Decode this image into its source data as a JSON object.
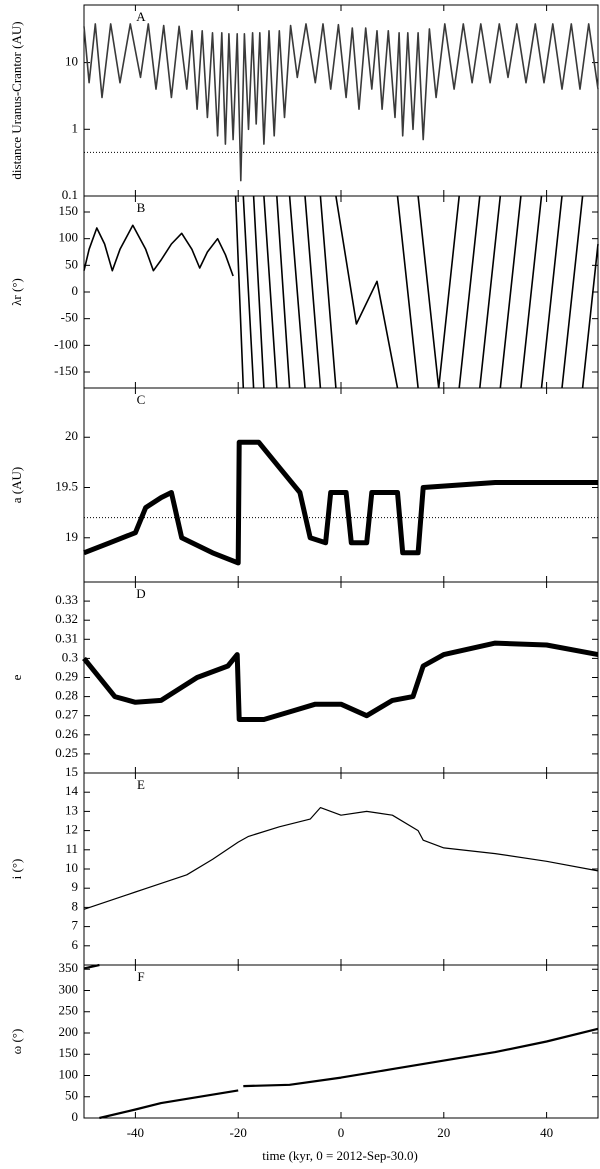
{
  "chart_data": [
    {
      "type": "line",
      "label": "A",
      "ylabel": "distance Uranus-Crantor (AU)",
      "log_y": true,
      "xlim": [
        -50,
        50
      ],
      "ylim": [
        0.1,
        73
      ],
      "yticks": [
        0.1,
        1,
        10
      ],
      "reference_line": 0.45,
      "x": [
        -50,
        -49,
        -47.8,
        -46.5,
        -44.8,
        -43,
        -41,
        -39,
        -37.5,
        -36,
        -34.5,
        -33,
        -31.5,
        -30,
        -29,
        -28,
        -27,
        -26,
        -25,
        -24,
        -23.2,
        -22.5,
        -21.8,
        -21,
        -20.2,
        -19.5,
        -18.8,
        -18,
        -17.2,
        -16.5,
        -15.8,
        -15,
        -14,
        -13,
        -12,
        -11,
        -9.8,
        -8.5,
        -6.8,
        -5,
        -3.5,
        -2,
        -0.5,
        1,
        2.2,
        3.5,
        4.8,
        6,
        7,
        8,
        9.2,
        10.5,
        11.3,
        12,
        13,
        14,
        15,
        16,
        17.2,
        18.5,
        20.2,
        22,
        23.8,
        25.5,
        27.2,
        29,
        30.8,
        32.5,
        34.2,
        36,
        37.8,
        39.5,
        41.2,
        43,
        44.8,
        46.5,
        48.2,
        50
      ],
      "series": [
        {
          "color": "#3a3a3a",
          "values": [
            35,
            5,
            38,
            3,
            38,
            5,
            38,
            6,
            38,
            4,
            36,
            3,
            35,
            4,
            30,
            2,
            30,
            1.5,
            28,
            0.8,
            28,
            0.6,
            27,
            0.7,
            27,
            0.17,
            27,
            1,
            28,
            1.2,
            28,
            0.6,
            30,
            0.8,
            30,
            1.5,
            36,
            6,
            38,
            5,
            38,
            4,
            37,
            3,
            33,
            2,
            33,
            4,
            30,
            2,
            30,
            1.5,
            28,
            0.8,
            28,
            1,
            28,
            0.7,
            32,
            3,
            38,
            4,
            38,
            5,
            38,
            5,
            38,
            6,
            38,
            5,
            38,
            5,
            38,
            4,
            38,
            4,
            38,
            4
          ]
        }
      ]
    },
    {
      "type": "line",
      "label": "B",
      "ylabel": "λr (°)",
      "xlim": [
        -50,
        50
      ],
      "ylim": [
        -180,
        180
      ],
      "yticks": [
        -150,
        -100,
        -50,
        0,
        50,
        100,
        150
      ],
      "x": [
        -50,
        -49,
        -47.5,
        -46,
        -44.5,
        -43,
        -40.5,
        -38,
        -36.5,
        -35,
        -33,
        -31,
        -29,
        -27.5,
        -26,
        -24,
        -22.5,
        -21,
        -20.5,
        -20.5,
        -19,
        -19,
        -19,
        -17,
        -17,
        -17,
        -15,
        -15,
        -15,
        -12.5,
        -12.5,
        -12.5,
        -10,
        -10,
        -10,
        -7,
        -7,
        -7,
        -4,
        -4,
        -4,
        -1,
        -1,
        -1,
        3,
        7,
        11,
        11,
        11,
        15,
        15,
        15,
        19,
        19,
        19,
        23,
        23,
        23,
        27,
        27,
        27,
        31,
        31,
        31,
        35,
        35,
        35,
        39,
        39,
        39,
        43,
        43,
        43,
        47,
        47,
        47,
        50
      ],
      "series": [
        {
          "color": "#000000",
          "values": [
            40,
            80,
            120,
            90,
            40,
            80,
            125,
            80,
            40,
            60,
            90,
            110,
            80,
            45,
            75,
            100,
            70,
            30,
            null,
            180,
            -180,
            null,
            180,
            -180,
            null,
            180,
            -180,
            null,
            180,
            -180,
            null,
            180,
            -180,
            null,
            180,
            -180,
            null,
            180,
            -180,
            null,
            180,
            -180,
            null,
            180,
            -60,
            20,
            -180,
            null,
            180,
            -180,
            null,
            180,
            -180,
            null,
            -180,
            180,
            null,
            -180,
            180,
            null,
            -180,
            180,
            null,
            -180,
            180,
            null,
            -180,
            180,
            null,
            -180,
            180,
            null,
            -180,
            180,
            null,
            -180,
            90
          ]
        }
      ]
    },
    {
      "type": "line",
      "label": "C",
      "ylabel": "a (AU)",
      "xlim": [
        -50,
        50
      ],
      "ylim": [
        18.56,
        20.49
      ],
      "yticks": [
        19,
        19.5,
        20
      ],
      "reference_line": 19.2,
      "x": [
        -50,
        -45,
        -40,
        -38,
        -35,
        -33,
        -31,
        -25,
        -20,
        -19.8,
        -16,
        -12,
        -8,
        -6,
        -3,
        -2,
        1,
        2,
        5,
        6,
        11,
        12,
        15,
        16,
        30,
        50
      ],
      "series": [
        {
          "color": "#000000",
          "values": [
            18.85,
            18.95,
            19.05,
            19.3,
            19.4,
            19.45,
            19.0,
            18.85,
            18.75,
            19.95,
            19.95,
            19.7,
            19.45,
            19.0,
            18.95,
            19.45,
            19.45,
            18.95,
            18.95,
            19.45,
            19.45,
            18.85,
            18.85,
            19.5,
            19.55,
            19.55
          ]
        }
      ]
    },
    {
      "type": "line",
      "label": "D",
      "ylabel": "e",
      "xlim": [
        -50,
        50
      ],
      "ylim": [
        0.24,
        0.34
      ],
      "yticks": [
        0.25,
        0.26,
        0.27,
        0.28,
        0.29,
        0.3,
        0.31,
        0.32,
        0.33
      ],
      "x": [
        -50,
        -44,
        -40,
        -35,
        -28,
        -22,
        -20.2,
        -19.8,
        -15,
        -10,
        -5,
        0,
        5,
        10,
        14,
        16,
        20,
        30,
        40,
        50
      ],
      "series": [
        {
          "color": "#000000",
          "values": [
            0.3,
            0.28,
            0.277,
            0.278,
            0.29,
            0.296,
            0.302,
            0.268,
            0.268,
            0.272,
            0.276,
            0.276,
            0.27,
            0.278,
            0.28,
            0.296,
            0.302,
            0.308,
            0.307,
            0.302
          ]
        }
      ]
    },
    {
      "type": "line",
      "label": "E",
      "ylabel": "i (°)",
      "xlim": [
        -50,
        50
      ],
      "ylim": [
        5,
        15
      ],
      "yticks": [
        6,
        7,
        8,
        9,
        10,
        11,
        12,
        13,
        14,
        15
      ],
      "x": [
        -50,
        -40,
        -30,
        -25,
        -20,
        -18,
        -12,
        -6,
        -4,
        0,
        5,
        10,
        15,
        16,
        20,
        30,
        40,
        50
      ],
      "series": [
        {
          "color": "#000000",
          "values": [
            7.9,
            8.8,
            9.7,
            10.5,
            11.4,
            11.7,
            12.2,
            12.6,
            13.2,
            12.8,
            13.0,
            12.8,
            12.0,
            11.5,
            11.1,
            10.8,
            10.4,
            9.9
          ]
        }
      ]
    },
    {
      "type": "line",
      "label": "F",
      "ylabel": "ω (°)",
      "xlabel": "time (kyr, 0 = 2012-Sep-30.0)",
      "xlim": [
        -50,
        50
      ],
      "ylim": [
        0,
        360
      ],
      "yticks": [
        0,
        50,
        100,
        150,
        200,
        250,
        300,
        350
      ],
      "xticks": [
        -40,
        -20,
        0,
        20,
        40
      ],
      "x": [
        -50,
        -47,
        -47,
        -47,
        -40,
        -35,
        -20,
        -20,
        -19,
        -10,
        0,
        10,
        20,
        30,
        40,
        50
      ],
      "series": [
        {
          "color": "#000000",
          "values": [
            352,
            360,
            null,
            0,
            20,
            35,
            65,
            null,
            75,
            78,
            95,
            115,
            135,
            155,
            180,
            210
          ]
        }
      ]
    }
  ]
}
